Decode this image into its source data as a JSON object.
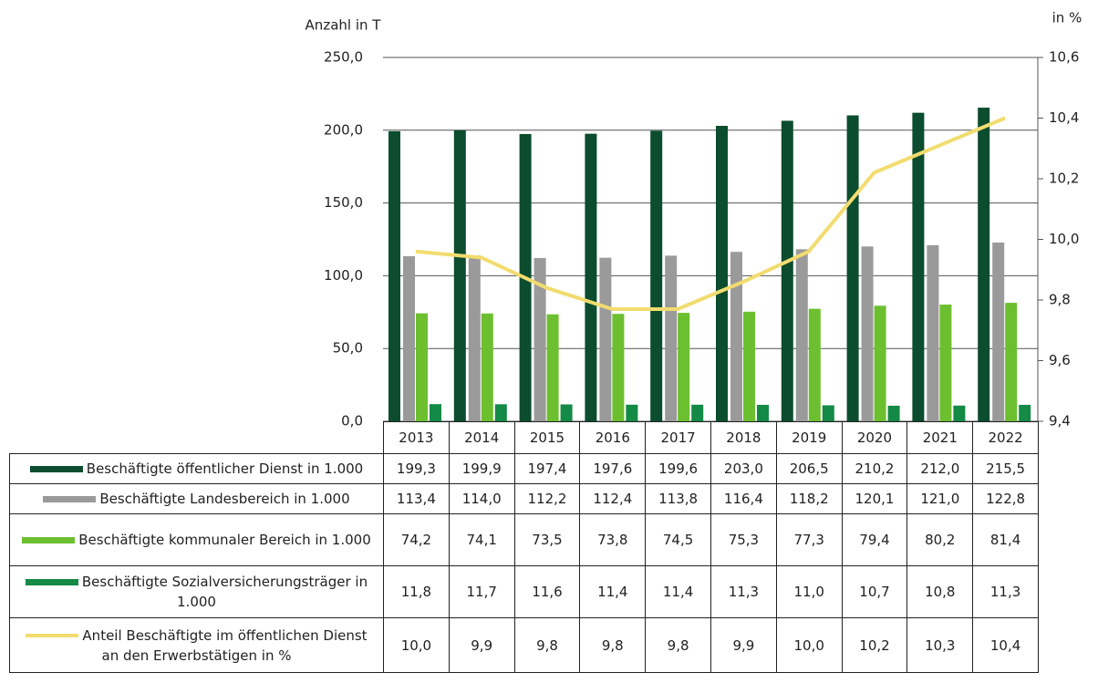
{
  "chart_data": {
    "type": "bar",
    "y_label": "Anzahl in T",
    "y2_label": "in %",
    "categories": [
      "2013",
      "2014",
      "2015",
      "2016",
      "2017",
      "2018",
      "2019",
      "2020",
      "2021",
      "2022"
    ],
    "ylim": [
      0,
      250
    ],
    "yticks": [
      {
        "value": 0,
        "label": "0,0"
      },
      {
        "value": 50,
        "label": "50,0"
      },
      {
        "value": 100,
        "label": "100,0"
      },
      {
        "value": 150,
        "label": "150,0"
      },
      {
        "value": 200,
        "label": "200,0"
      },
      {
        "value": 250,
        "label": "250,0"
      }
    ],
    "y2lim": [
      9.4,
      10.6
    ],
    "y2ticks": [
      {
        "value": 9.4,
        "label": "9,4"
      },
      {
        "value": 9.6,
        "label": "9,6"
      },
      {
        "value": 9.8,
        "label": "9,8"
      },
      {
        "value": 10.0,
        "label": "10,0"
      },
      {
        "value": 10.2,
        "label": "10,2"
      },
      {
        "value": 10.4,
        "label": "10,4"
      },
      {
        "value": 10.6,
        "label": "10,6"
      }
    ],
    "grid": true,
    "series": [
      {
        "name": "Beschäftigte öffentlicher Dienst in 1.000",
        "type": "bar",
        "color": "#0b4d2e",
        "values": [
          199.3,
          199.9,
          197.4,
          197.6,
          199.6,
          203.0,
          206.5,
          210.2,
          212.0,
          215.5
        ],
        "value_labels": [
          "199,3",
          "199,9",
          "197,4",
          "197,6",
          "199,6",
          "203,0",
          "206,5",
          "210,2",
          "212,0",
          "215,5"
        ]
      },
      {
        "name": "Beschäftigte Landesbereich in 1.000",
        "type": "bar",
        "color": "#9a9a9a",
        "values": [
          113.4,
          114.0,
          112.2,
          112.4,
          113.8,
          116.4,
          118.2,
          120.1,
          121.0,
          122.8
        ],
        "value_labels": [
          "113,4",
          "114,0",
          "112,2",
          "112,4",
          "113,8",
          "116,4",
          "118,2",
          "120,1",
          "121,0",
          "122,8"
        ]
      },
      {
        "name": "Beschäftigte kommunaler Bereich in 1.000",
        "type": "bar",
        "color": "#6cbf2f",
        "values": [
          74.2,
          74.1,
          73.5,
          73.8,
          74.5,
          75.3,
          77.3,
          79.4,
          80.2,
          81.4
        ],
        "value_labels": [
          "74,2",
          "74,1",
          "73,5",
          "73,8",
          "74,5",
          "75,3",
          "77,3",
          "79,4",
          "80,2",
          "81,4"
        ]
      },
      {
        "name": "Beschäftigte Sozialversicherungsträger in 1.000",
        "type": "bar",
        "color": "#138a45",
        "values": [
          11.8,
          11.7,
          11.6,
          11.4,
          11.4,
          11.3,
          11.0,
          10.7,
          10.8,
          11.3
        ],
        "value_labels": [
          "11,8",
          "11,7",
          "11,6",
          "11,4",
          "11,4",
          "11,3",
          "11,0",
          "10,7",
          "10,8",
          "11,3"
        ]
      },
      {
        "name": "Anteil Beschäftigte im öffentlichen Dienst an den Erwerbstätigen in %",
        "type": "line",
        "axis": "y2",
        "color": "#f2dc6e",
        "values": [
          9.96,
          9.94,
          9.84,
          9.77,
          9.77,
          9.86,
          9.96,
          10.22,
          10.31,
          10.4
        ],
        "value_labels": [
          "10,0",
          "9,9",
          "9,8",
          "9,8",
          "9,8",
          "9,9",
          "10,0",
          "10,2",
          "10,3",
          "10,4"
        ]
      }
    ]
  }
}
